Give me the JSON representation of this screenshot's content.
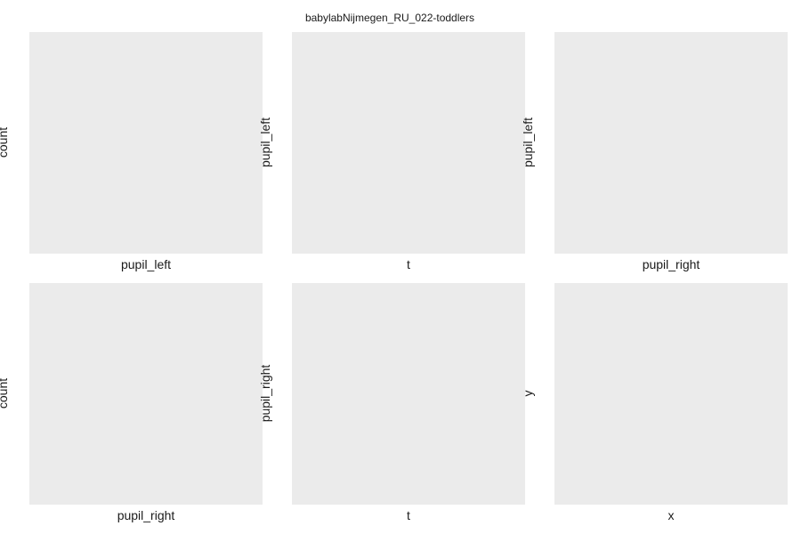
{
  "figure": {
    "title": "babylabNijmegen_RU_022-toddlers",
    "panel_background": "#ebebeb"
  },
  "chart_data": [
    {
      "type": "bar",
      "title": "",
      "xlabel": "pupil_left",
      "ylabel": "count",
      "values": [],
      "grid": false
    },
    {
      "type": "scatter",
      "title": "",
      "xlabel": "t",
      "ylabel": "pupil_left",
      "x": [],
      "y": [],
      "grid": false
    },
    {
      "type": "scatter",
      "title": "",
      "xlabel": "pupil_right",
      "ylabel": "pupil_left",
      "x": [],
      "y": [],
      "grid": false
    },
    {
      "type": "bar",
      "title": "",
      "xlabel": "pupil_right",
      "ylabel": "count",
      "values": [],
      "grid": false
    },
    {
      "type": "scatter",
      "title": "",
      "xlabel": "t",
      "ylabel": "pupil_right",
      "x": [],
      "y": [],
      "grid": false
    },
    {
      "type": "scatter",
      "title": "",
      "xlabel": "x",
      "ylabel": "y",
      "x": [],
      "y": [],
      "grid": false
    }
  ]
}
